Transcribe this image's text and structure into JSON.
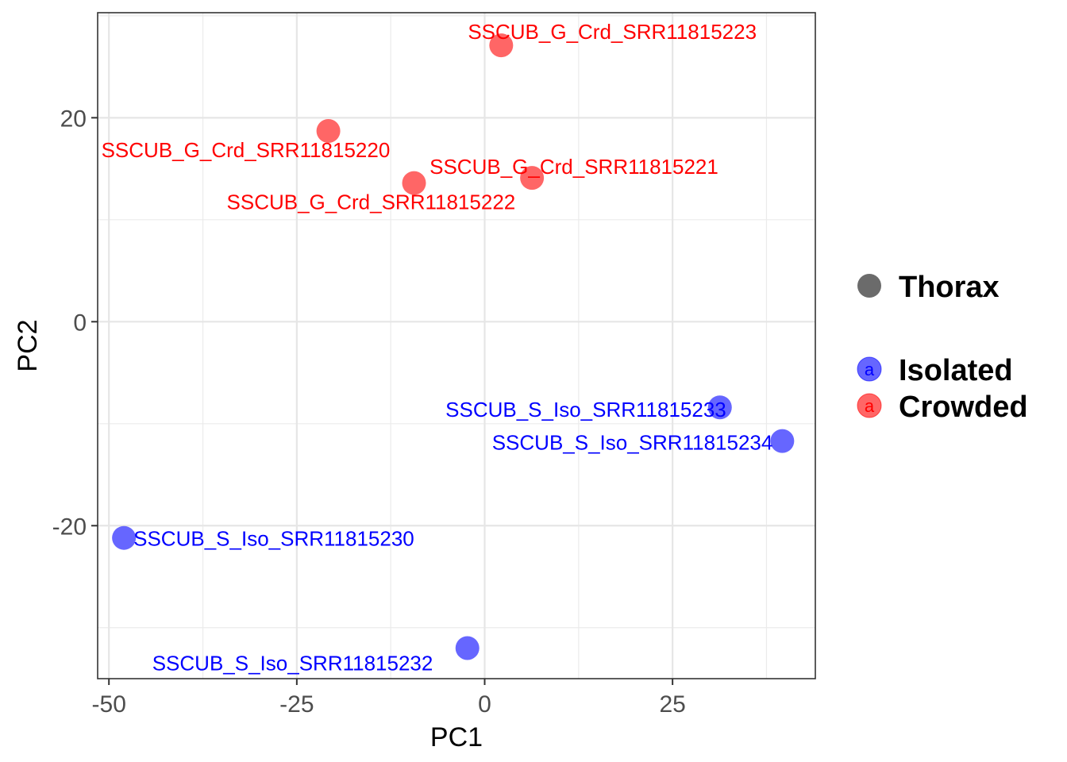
{
  "chart_data": {
    "type": "scatter",
    "xlabel": "PC1",
    "ylabel": "PC2",
    "xlim": [
      -51.5,
      44
    ],
    "ylim": [
      -35,
      30.3
    ],
    "x_ticks": [
      -50,
      -25,
      0,
      25
    ],
    "y_ticks": [
      -20,
      0,
      20
    ],
    "x_tick_labels": [
      "-50",
      "-25",
      "0",
      "25"
    ],
    "y_tick_labels": [
      "-20",
      "0",
      "20"
    ],
    "grid": true,
    "legend_position": "right",
    "shape_legend": {
      "label": "Thorax",
      "color": "#6b6b6b"
    },
    "color_legend": [
      {
        "name": "Isolated",
        "color": "#0000ff",
        "glyph": "a"
      },
      {
        "name": "Crowded",
        "color": "#ff0000",
        "glyph": "a"
      }
    ],
    "series": [
      {
        "name": "Crowded",
        "color": "#ff0000",
        "points": [
          {
            "x": 2.2,
            "y": 27.1,
            "label": "SSCUB_G_Crd_SRR11815223"
          },
          {
            "x": -20.8,
            "y": 18.7,
            "label": "SSCUB_G_Crd_SRR11815220"
          },
          {
            "x": 6.3,
            "y": 14.1,
            "label": "SSCUB_G_Crd_SRR11815221"
          },
          {
            "x": -9.4,
            "y": 13.6,
            "label": "SSCUB_G_Crd_SRR11815222"
          }
        ]
      },
      {
        "name": "Isolated",
        "color": "#0000ff",
        "points": [
          {
            "x": 31.3,
            "y": -8.4,
            "label": "SSCUB_S_Iso_SRR11815233"
          },
          {
            "x": 39.6,
            "y": -11.7,
            "label": "SSCUB_S_Iso_SRR11815234"
          },
          {
            "x": -48.0,
            "y": -21.2,
            "label": "SSCUB_S_Iso_SRR11815230"
          },
          {
            "x": -2.3,
            "y": -32.0,
            "label": "SSCUB_S_Iso_SRR11815232"
          }
        ]
      }
    ]
  }
}
